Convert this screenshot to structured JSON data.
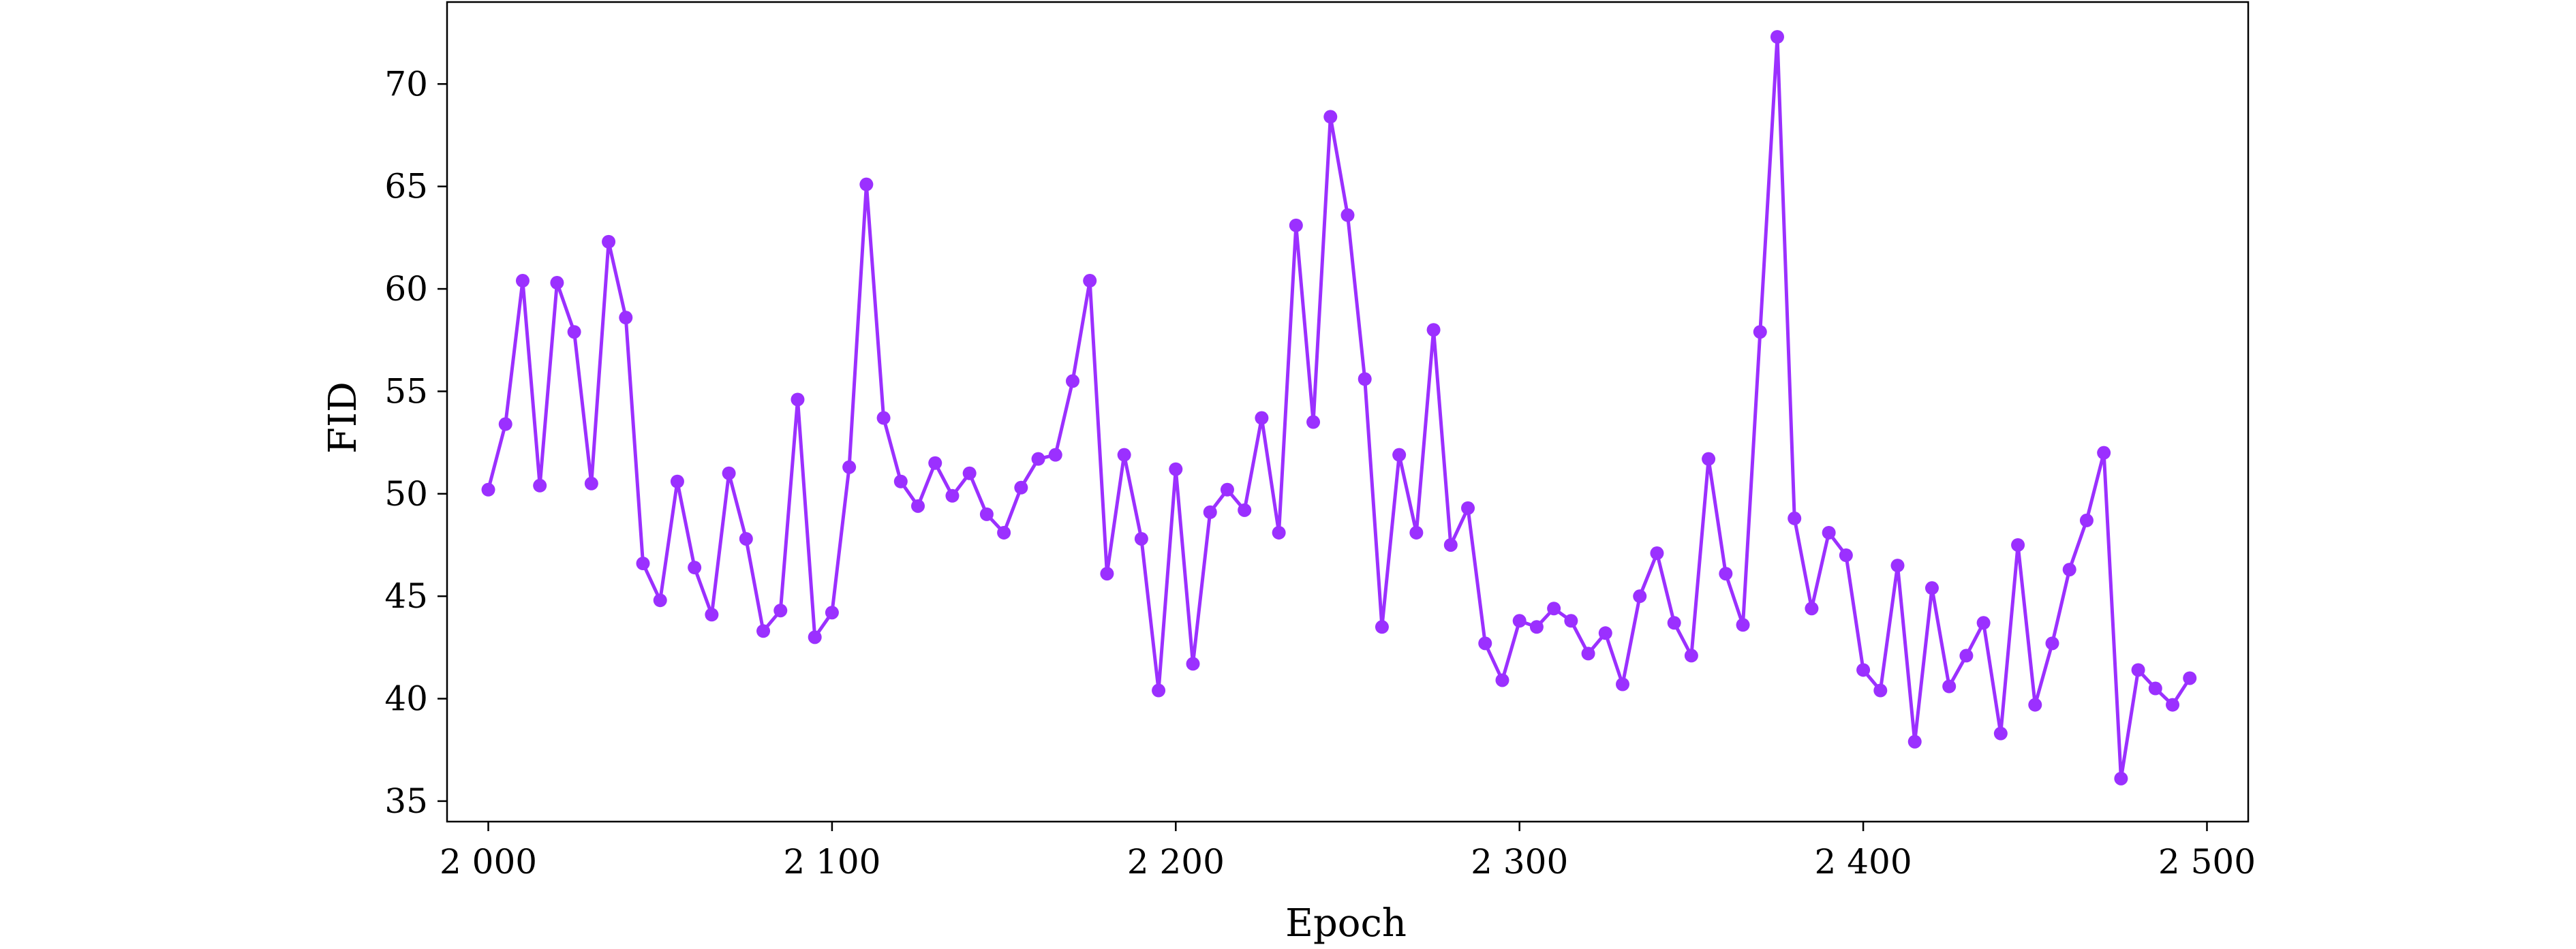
{
  "chart_data": {
    "type": "line",
    "xlabel": "Epoch",
    "ylabel": "FID",
    "xlim": [
      1988,
      2512
    ],
    "ylim": [
      34,
      74
    ],
    "xticks": [
      2000,
      2100,
      2200,
      2300,
      2400,
      2500
    ],
    "xtick_labels": [
      "2 000",
      "2 100",
      "2 200",
      "2 300",
      "2 400",
      "2 500"
    ],
    "yticks": [
      35,
      40,
      45,
      50,
      55,
      60,
      65,
      70
    ],
    "ytick_labels": [
      "35",
      "40",
      "45",
      "50",
      "55",
      "60",
      "65",
      "70"
    ],
    "grid": false,
    "series": [
      {
        "color": "#9b30ff",
        "marker": "circle",
        "x": [
          2000,
          2005,
          2010,
          2015,
          2020,
          2025,
          2030,
          2035,
          2040,
          2045,
          2050,
          2055,
          2060,
          2065,
          2070,
          2075,
          2080,
          2085,
          2090,
          2095,
          2100,
          2105,
          2110,
          2115,
          2120,
          2125,
          2130,
          2135,
          2140,
          2145,
          2150,
          2155,
          2160,
          2165,
          2170,
          2175,
          2180,
          2185,
          2190,
          2195,
          2200,
          2205,
          2210,
          2215,
          2220,
          2225,
          2230,
          2235,
          2240,
          2245,
          2250,
          2255,
          2260,
          2265,
          2270,
          2275,
          2280,
          2285,
          2290,
          2295,
          2300,
          2305,
          2310,
          2315,
          2320,
          2325,
          2330,
          2335,
          2340,
          2345,
          2350,
          2355,
          2360,
          2365,
          2370,
          2375,
          2380,
          2385,
          2390,
          2395,
          2400,
          2405,
          2410,
          2415,
          2420,
          2425,
          2430,
          2435,
          2440,
          2445,
          2450,
          2455,
          2460,
          2465,
          2470,
          2475,
          2480,
          2485,
          2490,
          2495
        ],
        "y": [
          50.2,
          53.4,
          60.4,
          50.4,
          60.3,
          57.9,
          50.5,
          62.3,
          58.6,
          46.6,
          44.8,
          50.6,
          46.4,
          44.1,
          51.0,
          47.8,
          43.3,
          44.3,
          54.6,
          43.0,
          44.2,
          51.3,
          65.1,
          53.7,
          50.6,
          49.4,
          51.5,
          49.9,
          51.0,
          49.0,
          48.1,
          50.3,
          51.7,
          51.9,
          55.5,
          60.4,
          46.1,
          51.9,
          47.8,
          40.4,
          51.2,
          41.7,
          49.1,
          50.2,
          49.2,
          53.7,
          48.1,
          63.1,
          53.5,
          68.4,
          63.6,
          55.6,
          43.5,
          51.9,
          48.1,
          58.0,
          47.5,
          49.3,
          42.7,
          40.9,
          43.8,
          43.5,
          44.4,
          43.8,
          42.2,
          43.2,
          40.7,
          45.0,
          47.1,
          43.7,
          42.1,
          51.7,
          46.1,
          43.6,
          57.9,
          72.3,
          48.8,
          44.4,
          48.1,
          47.0,
          41.4,
          40.4,
          46.5,
          37.9,
          45.4,
          40.6,
          42.1,
          43.7,
          38.3,
          47.5,
          39.7,
          42.7,
          46.3,
          48.7,
          52.0,
          36.1,
          41.4,
          40.5,
          39.7,
          41.0
        ]
      }
    ]
  }
}
